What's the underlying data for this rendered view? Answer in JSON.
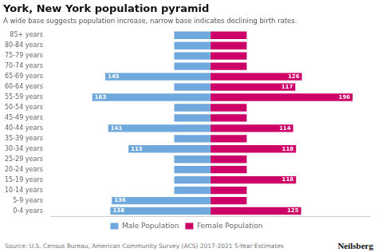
{
  "chart_data": {
    "type": "bar",
    "orientation": "horizontal",
    "title": "York, New York population pyramid",
    "subtitle": "A wide base suggests population increase, narrow base indicates declining birth rates.",
    "annotations": [
      "Source: U.S. Census Bureau, American Community Survey (ACS) 2017-2021 5-Year Estimates",
      "Neilsberg"
    ],
    "categories": [
      "0-4 years",
      "5-9 years",
      "10-14 years",
      "15-19 years",
      "20-24 years",
      "25-29 years",
      "30-34 years",
      "35-39 years",
      "40-44 years",
      "45-49 years",
      "50-54 years",
      "55-59 years",
      "60-64 years",
      "65-69 years",
      "70-74 years",
      "75-79 years",
      "80-84 years",
      "85+ years"
    ],
    "series": [
      {
        "name": "Male Population",
        "color": "#6fa8dc",
        "values": [
          138,
          136,
          50,
          50,
          50,
          50,
          113,
          50,
          141,
          50,
          50,
          163,
          50,
          145,
          50,
          50,
          50,
          50
        ],
        "value_labels": [
          "138",
          "136",
          null,
          null,
          null,
          null,
          "113",
          null,
          "141",
          null,
          null,
          "163",
          null,
          "145",
          null,
          null,
          null,
          null
        ]
      },
      {
        "name": "Female Population",
        "color": "#cc0066",
        "values": [
          125,
          50,
          50,
          118,
          50,
          50,
          118,
          50,
          114,
          50,
          50,
          196,
          117,
          126,
          50,
          50,
          50,
          50
        ],
        "value_labels": [
          "125",
          null,
          null,
          "118",
          null,
          null,
          "118",
          null,
          "114",
          null,
          null,
          "196",
          "117",
          "126",
          null,
          null,
          null,
          null
        ]
      }
    ],
    "xlim": [
      0,
      220
    ],
    "tick_labels": "y",
    "grid": false,
    "legend": "bottom",
    "data_labels": true
  }
}
